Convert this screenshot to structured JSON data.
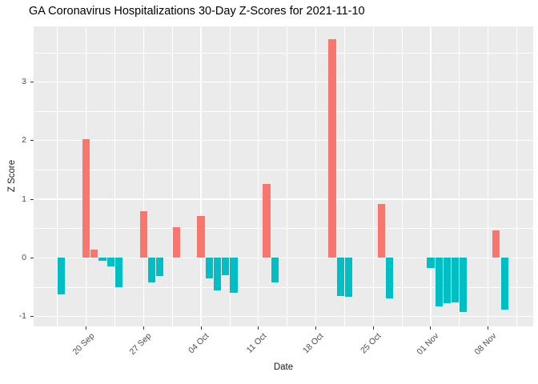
{
  "chart_data": {
    "type": "bar",
    "title": "GA Coronavirus Hospitalizations 30-Day Z-Scores for 2021-11-10",
    "xlabel": "Date",
    "ylabel": "Z Score",
    "grid": true,
    "legend_position": "none",
    "x_origin_date": "2021-09-20",
    "xlim_days": [
      -6.4,
      54.5
    ],
    "ylim": [
      -1.17,
      3.95
    ],
    "y_ticks": [
      -1,
      0,
      1,
      2,
      3
    ],
    "x_ticks": [
      {
        "label": "20 Sep",
        "date": "2021-09-20"
      },
      {
        "label": "27 Sep",
        "date": "2021-09-27"
      },
      {
        "label": "04 Oct",
        "date": "2021-10-04"
      },
      {
        "label": "11 Oct",
        "date": "2021-10-11"
      },
      {
        "label": "18 Oct",
        "date": "2021-10-18"
      },
      {
        "label": "25 Oct",
        "date": "2021-10-25"
      },
      {
        "label": "01 Nov",
        "date": "2021-11-01"
      },
      {
        "label": "08 Nov",
        "date": "2021-11-08"
      }
    ],
    "colors": {
      "positive": "#F8766D",
      "negative": "#00BFC4",
      "panel_background": "#EBEBEB",
      "gridline": "#FFFFFF",
      "axis_text": "#4D4D4D"
    },
    "bars": [
      {
        "date": "2021-09-17",
        "value": -0.63
      },
      {
        "date": "2021-09-20",
        "value": 2.03
      },
      {
        "date": "2021-09-21",
        "value": 0.14
      },
      {
        "date": "2021-09-22",
        "value": -0.05
      },
      {
        "date": "2021-09-23",
        "value": -0.15
      },
      {
        "date": "2021-09-24",
        "value": -0.5
      },
      {
        "date": "2021-09-27",
        "value": 0.79
      },
      {
        "date": "2021-09-28",
        "value": -0.42
      },
      {
        "date": "2021-09-29",
        "value": -0.31
      },
      {
        "date": "2021-10-01",
        "value": 0.52
      },
      {
        "date": "2021-10-04",
        "value": 0.72
      },
      {
        "date": "2021-10-05",
        "value": -0.35
      },
      {
        "date": "2021-10-06",
        "value": -0.56
      },
      {
        "date": "2021-10-07",
        "value": -0.3
      },
      {
        "date": "2021-10-08",
        "value": -0.59
      },
      {
        "date": "2021-10-12",
        "value": 1.26
      },
      {
        "date": "2021-10-13",
        "value": -0.42
      },
      {
        "date": "2021-10-20",
        "value": 3.73
      },
      {
        "date": "2021-10-21",
        "value": -0.65
      },
      {
        "date": "2021-10-22",
        "value": -0.67
      },
      {
        "date": "2021-10-26",
        "value": 0.92
      },
      {
        "date": "2021-10-27",
        "value": -0.69
      },
      {
        "date": "2021-11-01",
        "value": -0.18
      },
      {
        "date": "2021-11-02",
        "value": -0.83
      },
      {
        "date": "2021-11-03",
        "value": -0.78
      },
      {
        "date": "2021-11-04",
        "value": -0.76
      },
      {
        "date": "2021-11-05",
        "value": -0.92
      },
      {
        "date": "2021-11-09",
        "value": 0.47
      },
      {
        "date": "2021-11-10",
        "value": -0.88
      }
    ]
  }
}
